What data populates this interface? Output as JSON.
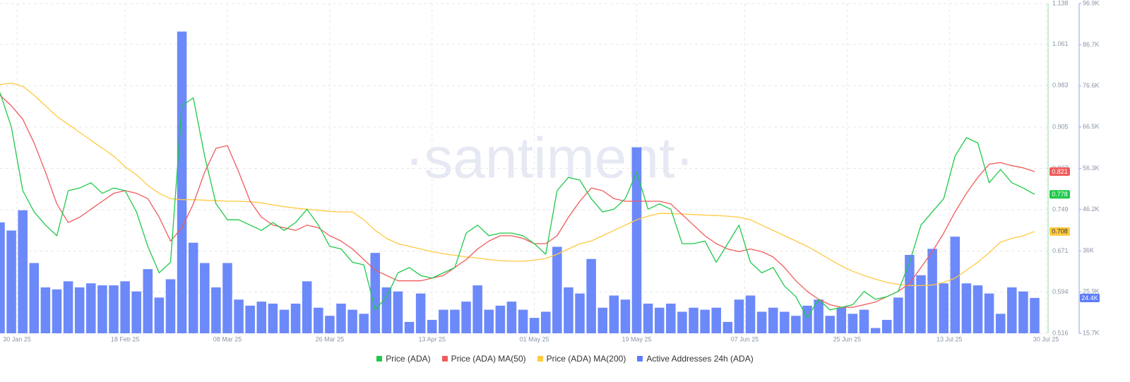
{
  "chart_data": {
    "type": "line",
    "watermark": "·santiment·",
    "x": [
      "2025-01-27",
      "2025-01-29",
      "2025-01-31",
      "2025-02-02",
      "2025-02-04",
      "2025-02-06",
      "2025-02-08",
      "2025-02-10",
      "2025-02-12",
      "2025-02-14",
      "2025-02-16",
      "2025-02-18",
      "2025-02-20",
      "2025-02-22",
      "2025-02-24",
      "2025-02-26",
      "2025-02-28",
      "2025-03-02",
      "2025-03-04",
      "2025-03-06",
      "2025-03-08",
      "2025-03-10",
      "2025-03-12",
      "2025-03-14",
      "2025-03-16",
      "2025-03-18",
      "2025-03-20",
      "2025-03-22",
      "2025-03-24",
      "2025-03-26",
      "2025-03-28",
      "2025-03-30",
      "2025-04-01",
      "2025-04-03",
      "2025-04-05",
      "2025-04-07",
      "2025-04-09",
      "2025-04-11",
      "2025-04-13",
      "2025-04-15",
      "2025-04-17",
      "2025-04-19",
      "2025-04-21",
      "2025-04-23",
      "2025-04-25",
      "2025-04-27",
      "2025-04-29",
      "2025-05-01",
      "2025-05-03",
      "2025-05-05",
      "2025-05-07",
      "2025-05-09",
      "2025-05-11",
      "2025-05-13",
      "2025-05-15",
      "2025-05-17",
      "2025-05-19",
      "2025-05-21",
      "2025-05-23",
      "2025-05-25",
      "2025-05-27",
      "2025-05-29",
      "2025-05-31",
      "2025-06-02",
      "2025-06-04",
      "2025-06-06",
      "2025-06-08",
      "2025-06-10",
      "2025-06-12",
      "2025-06-14",
      "2025-06-16",
      "2025-06-18",
      "2025-06-20",
      "2025-06-22",
      "2025-06-24",
      "2025-06-26",
      "2025-06-28",
      "2025-06-30",
      "2025-07-02",
      "2025-07-04",
      "2025-07-06",
      "2025-07-08",
      "2025-07-10",
      "2025-07-12",
      "2025-07-14",
      "2025-07-16",
      "2025-07-18",
      "2025-07-20",
      "2025-07-22",
      "2025-07-24",
      "2025-07-26",
      "2025-07-28"
    ],
    "xlim": [
      "2025-01-27",
      "2025-07-28"
    ],
    "xticks": [
      {
        "value": "2025-01-30",
        "label": "30 Jan 25"
      },
      {
        "value": "2025-02-18",
        "label": "18 Feb 25"
      },
      {
        "value": "2025-03-08",
        "label": "08 Mar 25"
      },
      {
        "value": "2025-03-26",
        "label": "26 Mar 25"
      },
      {
        "value": "2025-04-13",
        "label": "13 Apr 25"
      },
      {
        "value": "2025-05-01",
        "label": "01 May 25"
      },
      {
        "value": "2025-05-19",
        "label": "19 May 25"
      },
      {
        "value": "2025-06-07",
        "label": "07 Jun 25"
      },
      {
        "value": "2025-06-25",
        "label": "25 Jun 25"
      },
      {
        "value": "2025-07-13",
        "label": "13 Jul 25"
      },
      {
        "value": "2025-07-30",
        "label": "30 Jul 25"
      }
    ],
    "ylim": [
      0.516,
      1.138
    ],
    "yticks": [
      0.516,
      0.594,
      0.671,
      0.749,
      0.827,
      0.905,
      0.983,
      1.061,
      1.138
    ],
    "y2lim": [
      15700,
      96900
    ],
    "y2ticks": [
      {
        "value": 15700,
        "label": "15.7K"
      },
      {
        "value": 25900,
        "label": "25.9K"
      },
      {
        "value": 36000,
        "label": "36K"
      },
      {
        "value": 46200,
        "label": "46.2K"
      },
      {
        "value": 56300,
        "label": "56.3K"
      },
      {
        "value": 66500,
        "label": "66.5K"
      },
      {
        "value": 76600,
        "label": "76.6K"
      },
      {
        "value": 86700,
        "label": "86.7K"
      },
      {
        "value": 96900,
        "label": "96.9K"
      }
    ],
    "grid": true,
    "series": [
      {
        "name": "Price (ADA)",
        "color": "#1fc94a",
        "values": [
          0.97,
          0.905,
          0.785,
          0.745,
          0.72,
          0.7,
          0.785,
          0.79,
          0.8,
          0.78,
          0.79,
          0.785,
          0.745,
          0.68,
          0.63,
          0.65,
          0.945,
          0.96,
          0.85,
          0.76,
          0.73,
          0.73,
          0.72,
          0.71,
          0.725,
          0.71,
          0.725,
          0.75,
          0.72,
          0.68,
          0.675,
          0.65,
          0.645,
          0.56,
          0.585,
          0.63,
          0.64,
          0.625,
          0.62,
          0.63,
          0.64,
          0.705,
          0.72,
          0.7,
          0.705,
          0.705,
          0.7,
          0.685,
          0.665,
          0.785,
          0.81,
          0.805,
          0.77,
          0.745,
          0.75,
          0.77,
          0.82,
          0.75,
          0.76,
          0.75,
          0.685,
          0.685,
          0.69,
          0.65,
          0.685,
          0.72,
          0.65,
          0.63,
          0.64,
          0.605,
          0.585,
          0.545,
          0.58,
          0.56,
          0.565,
          0.57,
          0.595,
          0.58,
          0.585,
          0.595,
          0.65,
          0.72,
          0.745,
          0.77,
          0.85,
          0.885,
          0.875,
          0.8,
          0.825,
          0.8,
          0.79,
          0.778
        ]
      },
      {
        "name": "Price (ADA) MA(50)",
        "color": "#f05b5b",
        "values": [
          0.965,
          0.945,
          0.92,
          0.875,
          0.82,
          0.76,
          0.725,
          0.735,
          0.75,
          0.765,
          0.78,
          0.785,
          0.78,
          0.77,
          0.735,
          0.69,
          0.715,
          0.76,
          0.82,
          0.865,
          0.87,
          0.82,
          0.765,
          0.735,
          0.72,
          0.715,
          0.71,
          0.72,
          0.715,
          0.7,
          0.69,
          0.675,
          0.655,
          0.635,
          0.625,
          0.615,
          0.615,
          0.615,
          0.62,
          0.625,
          0.64,
          0.655,
          0.675,
          0.69,
          0.7,
          0.7,
          0.695,
          0.685,
          0.685,
          0.7,
          0.735,
          0.765,
          0.79,
          0.785,
          0.77,
          0.765,
          0.765,
          0.765,
          0.765,
          0.76,
          0.74,
          0.72,
          0.7,
          0.685,
          0.675,
          0.67,
          0.675,
          0.67,
          0.66,
          0.64,
          0.615,
          0.595,
          0.58,
          0.57,
          0.565,
          0.565,
          0.57,
          0.575,
          0.585,
          0.595,
          0.61,
          0.64,
          0.67,
          0.705,
          0.745,
          0.78,
          0.81,
          0.835,
          0.838,
          0.832,
          0.828,
          0.821
        ]
      },
      {
        "name": "Price (ADA) MA(200)",
        "color": "#ffc940",
        "values": [
          0.985,
          0.988,
          0.982,
          0.965,
          0.945,
          0.925,
          0.91,
          0.895,
          0.88,
          0.865,
          0.85,
          0.83,
          0.815,
          0.795,
          0.78,
          0.77,
          0.768,
          0.768,
          0.767,
          0.766,
          0.765,
          0.765,
          0.764,
          0.762,
          0.758,
          0.755,
          0.752,
          0.75,
          0.748,
          0.746,
          0.745,
          0.745,
          0.73,
          0.71,
          0.695,
          0.685,
          0.68,
          0.675,
          0.67,
          0.666,
          0.663,
          0.66,
          0.658,
          0.655,
          0.653,
          0.652,
          0.652,
          0.654,
          0.657,
          0.665,
          0.675,
          0.685,
          0.69,
          0.7,
          0.71,
          0.72,
          0.73,
          0.737,
          0.742,
          0.742,
          0.741,
          0.74,
          0.739,
          0.738,
          0.737,
          0.735,
          0.73,
          0.72,
          0.71,
          0.7,
          0.69,
          0.68,
          0.668,
          0.655,
          0.643,
          0.633,
          0.625,
          0.618,
          0.612,
          0.608,
          0.606,
          0.606,
          0.607,
          0.612,
          0.62,
          0.635,
          0.65,
          0.668,
          0.688,
          0.695,
          0.7,
          0.708
        ]
      },
      {
        "name": "Active Addresses 24h (ADA)",
        "color": "#5c7cfa",
        "type": "bar",
        "axis": "y2",
        "current_label": "24.4K",
        "values": [
          43000,
          41000,
          46000,
          33000,
          27000,
          26500,
          28500,
          27000,
          28000,
          27500,
          27500,
          28500,
          26000,
          31500,
          24500,
          29000,
          90000,
          38000,
          33000,
          27000,
          33000,
          24000,
          22500,
          23500,
          23000,
          21500,
          23000,
          28500,
          22000,
          20000,
          23000,
          21500,
          20500,
          35500,
          27000,
          26000,
          18500,
          25500,
          19000,
          21500,
          21500,
          23500,
          27500,
          21500,
          22500,
          23500,
          21500,
          19500,
          21000,
          37000,
          27000,
          25500,
          34000,
          22000,
          25000,
          24000,
          61500,
          23000,
          22000,
          23000,
          21000,
          22000,
          21500,
          22000,
          18500,
          24000,
          25000,
          21000,
          22000,
          21000,
          20000,
          22500,
          24000,
          20000,
          22000,
          20500,
          21500,
          17000,
          19000,
          24500,
          35000,
          30000,
          36500,
          28000,
          39500,
          28000,
          27500,
          25500,
          20500,
          27000,
          26000,
          24400
        ]
      }
    ]
  }
}
